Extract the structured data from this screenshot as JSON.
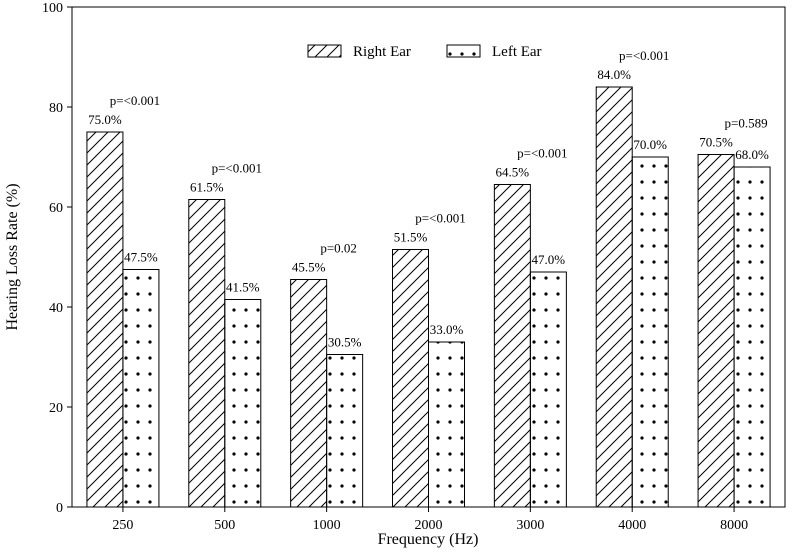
{
  "chart_data": {
    "type": "bar",
    "xlabel": "Frequency (Hz)",
    "ylabel": "Hearing Loss Rate (%)",
    "ylim": [
      0,
      100
    ],
    "yticks": [
      0,
      20,
      40,
      60,
      80,
      100
    ],
    "grid": false,
    "legend_placement": "top-center",
    "categories": [
      "250",
      "500",
      "1000",
      "2000",
      "3000",
      "4000",
      "8000"
    ],
    "series": [
      {
        "name": "Right Ear",
        "pattern": "diagonal-hatch",
        "values": [
          75.0,
          61.5,
          45.5,
          51.5,
          64.5,
          84.0,
          70.5
        ],
        "labels": [
          "75.0%",
          "61.5%",
          "45.5%",
          "51.5%",
          "64.5%",
          "84.0%",
          "70.5%"
        ]
      },
      {
        "name": "Left Ear",
        "pattern": "dots",
        "values": [
          47.5,
          41.5,
          30.5,
          33.0,
          47.0,
          70.0,
          68.0
        ],
        "labels": [
          "47.5%",
          "41.5%",
          "30.5%",
          "33.0%",
          "47.0%",
          "70.0%",
          "68.0%"
        ]
      }
    ],
    "p_values": [
      "p=<0.001",
      "p=<0.001",
      "p=0.02",
      "p=<0.001",
      "p=<0.001",
      "p=<0.001",
      "p=0.589"
    ],
    "colors": {
      "stroke": "#000000",
      "fill": "#ffffff"
    }
  }
}
